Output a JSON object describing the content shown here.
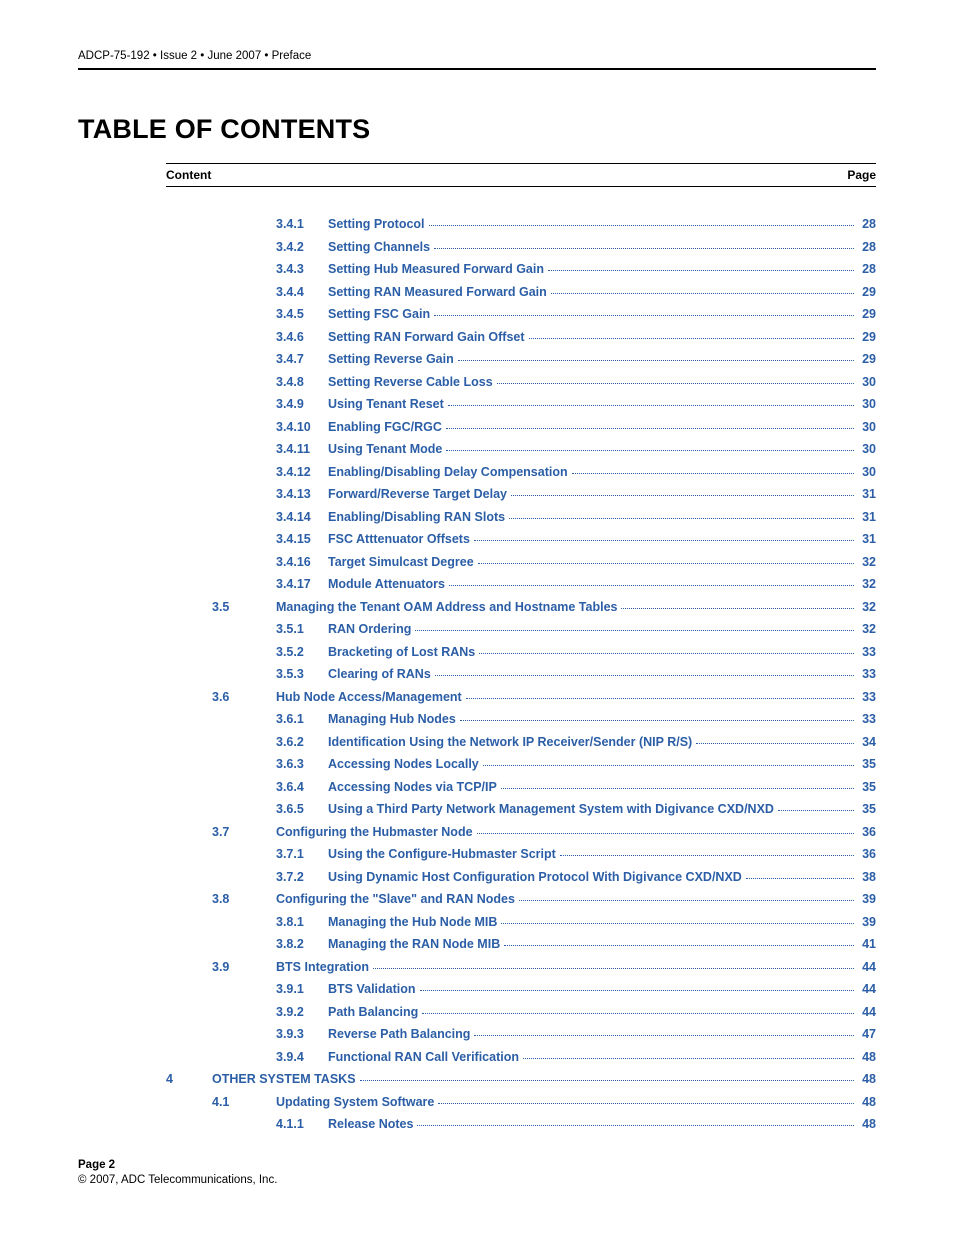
{
  "header": "ADCP-75-192 • Issue 2 • June 2007 • Preface",
  "title": "TABLE OF CONTENTS",
  "toc_header": {
    "left": "Content",
    "right": "Page"
  },
  "entries": [
    {
      "level": 2,
      "num": "3.4.1",
      "label": "Setting Protocol",
      "page": "28"
    },
    {
      "level": 2,
      "num": "3.4.2",
      "label": "Setting Channels",
      "page": "28"
    },
    {
      "level": 2,
      "num": "3.4.3",
      "label": "Setting Hub Measured Forward Gain",
      "page": "28"
    },
    {
      "level": 2,
      "num": "3.4.4",
      "label": "Setting RAN Measured Forward Gain",
      "page": "29"
    },
    {
      "level": 2,
      "num": "3.4.5",
      "label": "Setting FSC Gain",
      "page": "29"
    },
    {
      "level": 2,
      "num": "3.4.6",
      "label": "Setting RAN Forward Gain Offset",
      "page": "29"
    },
    {
      "level": 2,
      "num": "3.4.7",
      "label": "Setting Reverse Gain",
      "page": "29"
    },
    {
      "level": 2,
      "num": "3.4.8",
      "label": "Setting Reverse Cable Loss",
      "page": "30"
    },
    {
      "level": 2,
      "num": "3.4.9",
      "label": "Using Tenant Reset",
      "page": "30"
    },
    {
      "level": 2,
      "num": "3.4.10",
      "label": "Enabling FGC/RGC",
      "page": "30"
    },
    {
      "level": 2,
      "num": "3.4.11",
      "label": "Using Tenant Mode",
      "page": "30"
    },
    {
      "level": 2,
      "num": "3.4.12",
      "label": "Enabling/Disabling Delay Compensation",
      "page": "30"
    },
    {
      "level": 2,
      "num": "3.4.13",
      "label": "Forward/Reverse Target Delay",
      "page": "31"
    },
    {
      "level": 2,
      "num": "3.4.14",
      "label": "Enabling/Disabling RAN Slots",
      "page": "31"
    },
    {
      "level": 2,
      "num": "3.4.15",
      "label": "FSC Atttenuator Offsets",
      "page": "31"
    },
    {
      "level": 2,
      "num": "3.4.16",
      "label": "Target Simulcast Degree",
      "page": "32"
    },
    {
      "level": 2,
      "num": "3.4.17",
      "label": "Module Attenuators",
      "page": "32"
    },
    {
      "level": 1,
      "num": "3.5",
      "label": "Managing the Tenant OAM Address and Hostname Tables",
      "page": "32"
    },
    {
      "level": 2,
      "num": "3.5.1",
      "label": "RAN Ordering",
      "page": "32"
    },
    {
      "level": 2,
      "num": "3.5.2",
      "label": "Bracketing of Lost RANs",
      "page": "33"
    },
    {
      "level": 2,
      "num": "3.5.3",
      "label": "Clearing of RANs",
      "page": "33"
    },
    {
      "level": 1,
      "num": "3.6",
      "label": "Hub Node Access/Management",
      "page": "33"
    },
    {
      "level": 2,
      "num": "3.6.1",
      "label": "Managing Hub Nodes",
      "page": "33"
    },
    {
      "level": 2,
      "num": "3.6.2",
      "label": "Identification Using the Network IP Receiver/Sender (NIP R/S)",
      "page": "34"
    },
    {
      "level": 2,
      "num": "3.6.3",
      "label": "Accessing Nodes Locally",
      "page": "35"
    },
    {
      "level": 2,
      "num": "3.6.4",
      "label": "Accessing Nodes via TCP/IP",
      "page": "35"
    },
    {
      "level": 2,
      "num": "3.6.5",
      "label": "Using a Third Party Network Management System with Digivance CXD/NXD",
      "page": "35"
    },
    {
      "level": 1,
      "num": "3.7",
      "label": "Configuring the Hubmaster Node",
      "page": "36"
    },
    {
      "level": 2,
      "num": "3.7.1",
      "label": "Using the Configure-Hubmaster Script",
      "page": "36"
    },
    {
      "level": 2,
      "num": "3.7.2",
      "label": "Using Dynamic Host Configuration Protocol With Digivance CXD/NXD",
      "page": "38"
    },
    {
      "level": 1,
      "num": "3.8",
      "label": "Configuring the \"Slave\" and RAN Nodes",
      "page": "39"
    },
    {
      "level": 2,
      "num": "3.8.1",
      "label": "Managing the Hub Node MIB",
      "page": "39"
    },
    {
      "level": 2,
      "num": "3.8.2",
      "label": "Managing the RAN Node MIB",
      "page": "41"
    },
    {
      "level": 1,
      "num": "3.9",
      "label": "BTS Integration",
      "page": "44"
    },
    {
      "level": 2,
      "num": "3.9.1",
      "label": "BTS Validation",
      "page": "44"
    },
    {
      "level": 2,
      "num": "3.9.2",
      "label": "Path Balancing",
      "page": "44"
    },
    {
      "level": 2,
      "num": "3.9.3",
      "label": "Reverse Path Balancing",
      "page": "47"
    },
    {
      "level": 2,
      "num": "3.9.4",
      "label": "Functional RAN Call Verification",
      "page": "48"
    },
    {
      "level": 0,
      "num": "4",
      "label": "OTHER SYSTEM TASKS",
      "page": "48"
    },
    {
      "level": 1,
      "num": "4.1",
      "label": "Updating System Software",
      "page": "48"
    },
    {
      "level": 2,
      "num": "4.1.1",
      "label": "Release Notes",
      "page": "48"
    }
  ],
  "footer": {
    "page": "Page 2",
    "copyright": "© 2007, ADC Telecommunications, Inc."
  },
  "colors": {
    "link": "#2b5ea6",
    "text": "#000000",
    "bg": "#ffffff"
  }
}
